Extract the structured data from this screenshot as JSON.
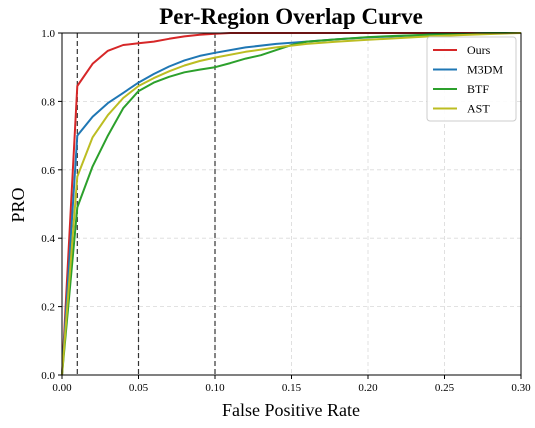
{
  "chart_data": {
    "type": "line",
    "title": "Per-Region Overlap Curve",
    "xlabel": "False Positive Rate",
    "ylabel": "PRO",
    "xlim": [
      0.0,
      0.3
    ],
    "ylim": [
      0.0,
      1.0
    ],
    "xticks": [
      "0.00",
      "0.05",
      "0.10",
      "0.15",
      "0.20",
      "0.25",
      "0.30"
    ],
    "yticks": [
      "0.0",
      "0.2",
      "0.4",
      "0.6",
      "0.8",
      "1.0"
    ],
    "grid": "on",
    "legend_position": "top-right",
    "reference_lines_x": [
      0.01,
      0.05,
      0.1
    ],
    "series": [
      {
        "name": "Ours",
        "color": "#d62728",
        "x": [
          0,
          0.01,
          0.02,
          0.03,
          0.04,
          0.05,
          0.06,
          0.07,
          0.08,
          0.09,
          0.1,
          0.11,
          0.12,
          0.13,
          0.3
        ],
        "y": [
          0,
          0.845,
          0.91,
          0.948,
          0.965,
          0.97,
          0.975,
          0.983,
          0.99,
          0.995,
          0.998,
          1.0,
          1.0,
          1.0,
          1.0
        ]
      },
      {
        "name": "M3DM",
        "color": "#1f77b4",
        "x": [
          0,
          0.01,
          0.02,
          0.03,
          0.04,
          0.05,
          0.06,
          0.07,
          0.08,
          0.09,
          0.1,
          0.12,
          0.14,
          0.16,
          0.18,
          0.2,
          0.22,
          0.24,
          0.26,
          0.28,
          0.3
        ],
        "y": [
          0,
          0.7,
          0.755,
          0.795,
          0.825,
          0.855,
          0.88,
          0.902,
          0.92,
          0.933,
          0.942,
          0.958,
          0.968,
          0.975,
          0.982,
          0.987,
          0.991,
          0.995,
          0.998,
          1.0,
          1.0
        ]
      },
      {
        "name": "BTF",
        "color": "#2ca02c",
        "x": [
          0,
          0.01,
          0.02,
          0.03,
          0.04,
          0.05,
          0.06,
          0.07,
          0.08,
          0.09,
          0.1,
          0.11,
          0.12,
          0.13,
          0.14,
          0.15,
          0.16,
          0.18,
          0.2,
          0.22,
          0.24,
          0.26,
          0.28,
          0.3
        ],
        "y": [
          0,
          0.49,
          0.61,
          0.7,
          0.78,
          0.83,
          0.855,
          0.872,
          0.885,
          0.893,
          0.9,
          0.912,
          0.925,
          0.935,
          0.95,
          0.965,
          0.975,
          0.982,
          0.988,
          0.992,
          0.995,
          0.998,
          1.0,
          1.0
        ]
      },
      {
        "name": "AST",
        "color": "#bcbd22",
        "x": [
          0,
          0.01,
          0.02,
          0.03,
          0.04,
          0.05,
          0.06,
          0.07,
          0.08,
          0.09,
          0.1,
          0.12,
          0.14,
          0.16,
          0.18,
          0.2,
          0.22,
          0.24,
          0.26,
          0.28,
          0.3
        ],
        "y": [
          0,
          0.58,
          0.695,
          0.76,
          0.81,
          0.845,
          0.868,
          0.888,
          0.905,
          0.918,
          0.928,
          0.945,
          0.958,
          0.968,
          0.975,
          0.98,
          0.985,
          0.99,
          0.994,
          0.997,
          1.0
        ]
      }
    ]
  }
}
